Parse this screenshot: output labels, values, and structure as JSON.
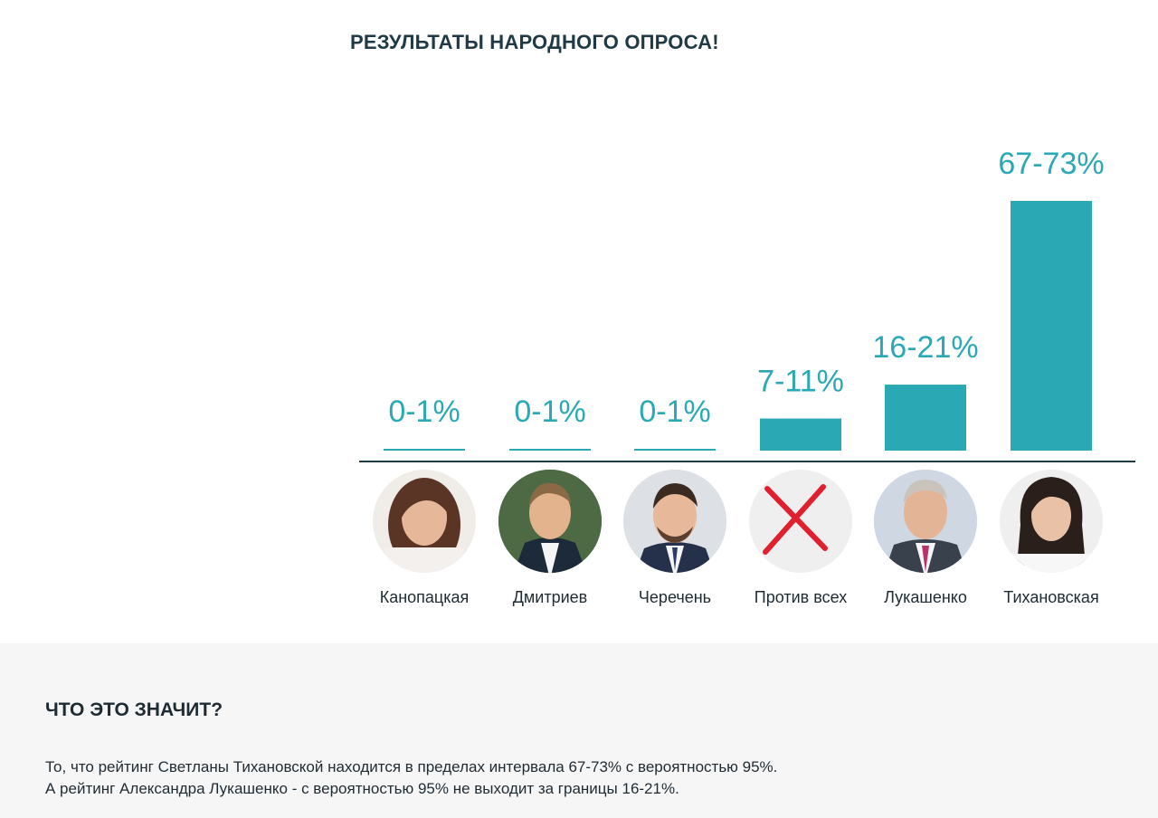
{
  "page": {
    "title": "РЕЗУЛЬТАТЫ НАРОДНОГО ОПРОСА!"
  },
  "chart_data": {
    "type": "bar",
    "title": "РЕЗУЛЬТАТЫ НАРОДНОГО ОПРОСА!",
    "categories": [
      "Канопацкая",
      "Дмитриев",
      "Черечень",
      "Против всех",
      "Лукашенко",
      "Тихановская"
    ],
    "value_labels": [
      "0-1%",
      "0-1%",
      "0-1%",
      "7-11%",
      "16-21%",
      "67-73%"
    ],
    "ranges": [
      [
        0,
        1
      ],
      [
        0,
        1
      ],
      [
        0,
        1
      ],
      [
        7,
        11
      ],
      [
        16,
        21
      ],
      [
        67,
        73
      ]
    ],
    "values": [
      0.5,
      0.5,
      0.5,
      9,
      18.5,
      70
    ],
    "ylim": [
      0,
      70
    ],
    "xlabel": "",
    "ylabel": "",
    "grid": false,
    "legend": "none",
    "colors": {
      "bar": "#2aa9b4",
      "axis": "#1f3a44",
      "cross": "#e0202e"
    },
    "icons": [
      "photo-kanopatskaya",
      "photo-dmitriev",
      "photo-cherechen",
      "red-cross-icon",
      "photo-lukashenko",
      "photo-tikhanovskaya"
    ]
  },
  "explanation": {
    "heading": "ЧТО ЭТО ЗНАЧИТ?",
    "line1": "То, что рейтинг Светланы Тихановской находится в пределах интервала 67-73% с вероятностью 95%.",
    "line2": "А рейтинг Александра Лукашенко - с вероятностью 95% не выходит за границы 16-21%."
  }
}
